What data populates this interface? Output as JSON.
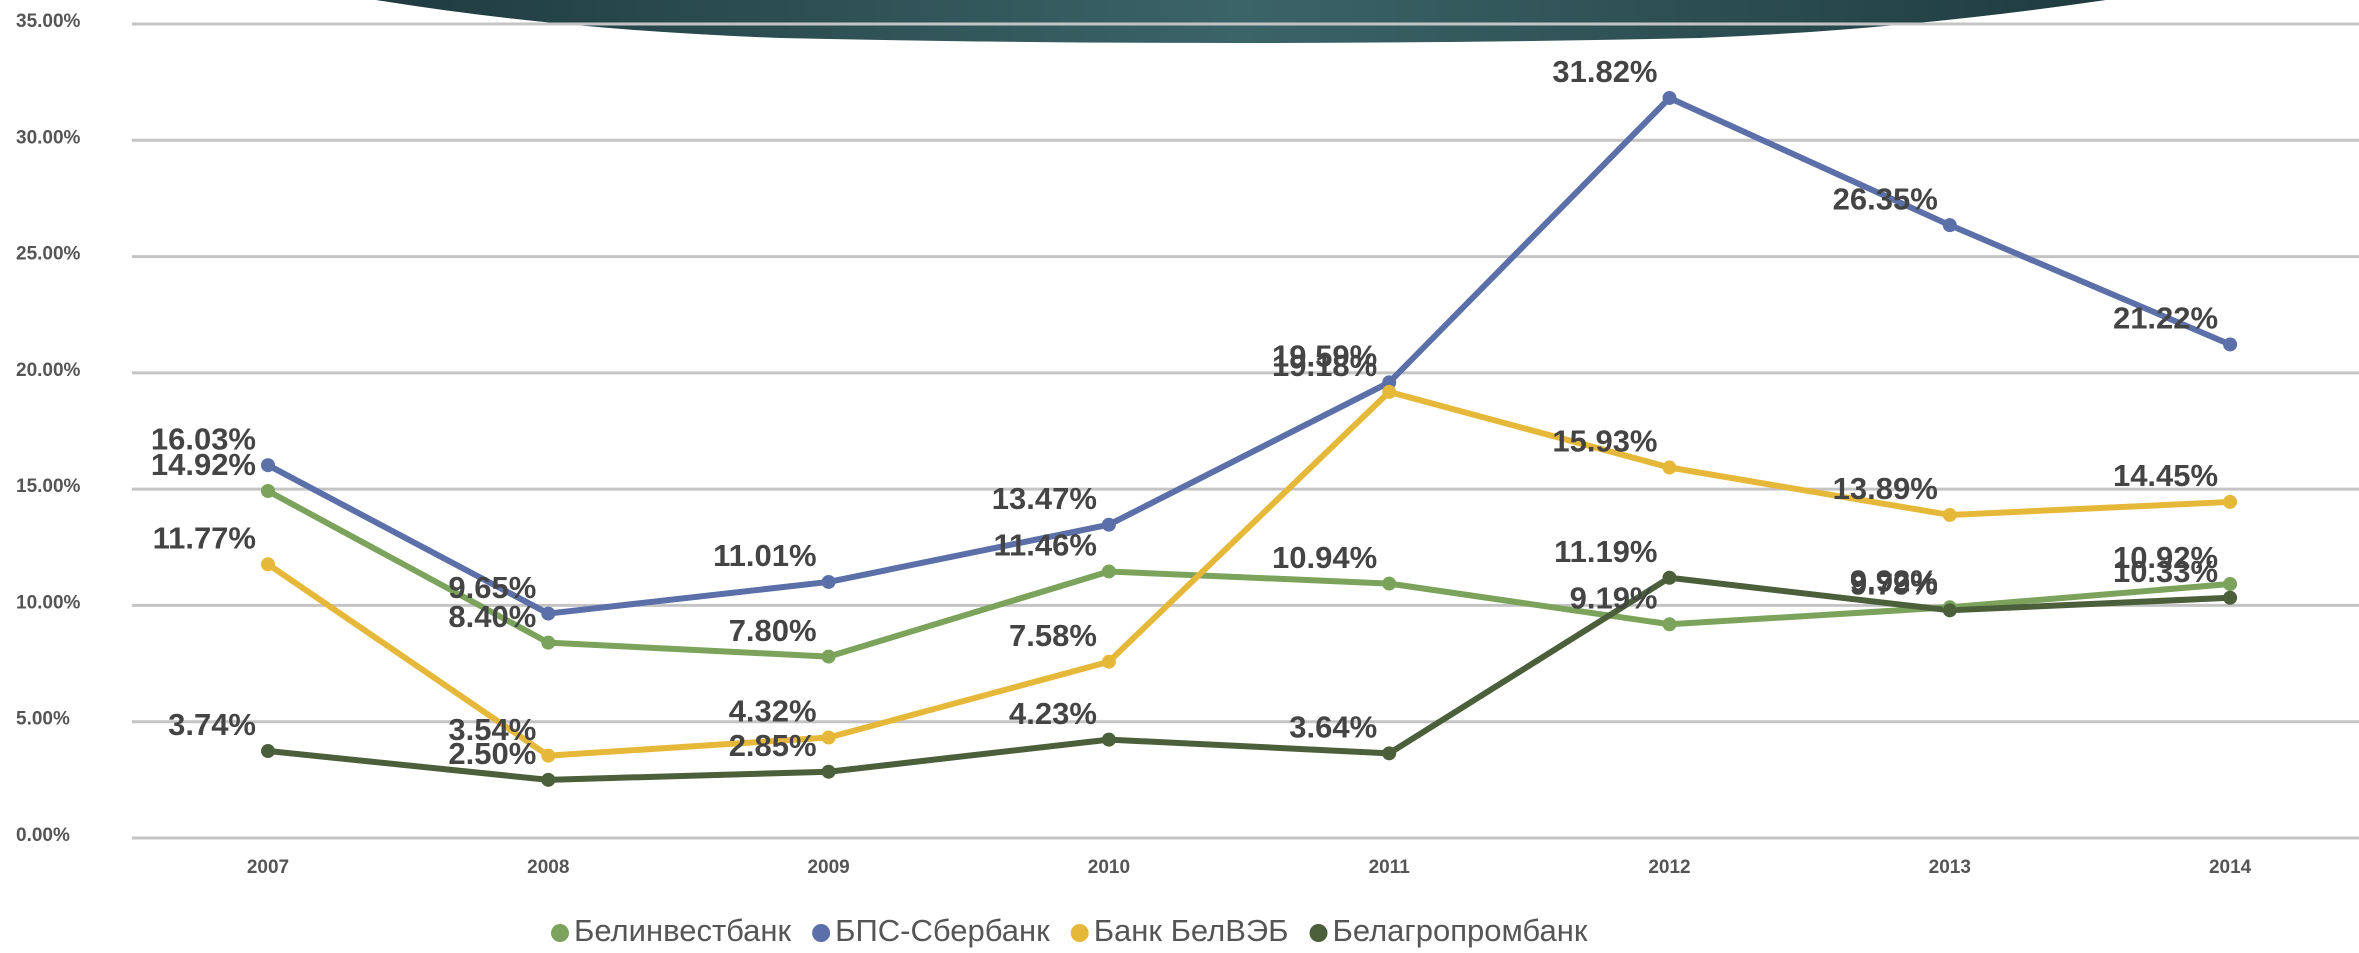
{
  "chart_data": {
    "type": "line",
    "categories": [
      "2007",
      "2008",
      "2009",
      "2010",
      "2011",
      "2012",
      "2013",
      "2014"
    ],
    "series": [
      {
        "name": "Белинвестбанк",
        "color": "#7ba35c",
        "values": [
          14.92,
          8.4,
          7.8,
          11.46,
          10.94,
          9.19,
          9.92,
          10.92
        ],
        "value_labels": [
          "14.92%",
          "8.40%",
          "7.80%",
          "11.46%",
          "10.94%",
          "9.19%",
          "9.92%",
          "10.92%"
        ]
      },
      {
        "name": "БПС-Сбербанк",
        "color": "#5b6fa8",
        "values": [
          16.03,
          9.65,
          11.01,
          13.47,
          19.59,
          31.82,
          26.35,
          21.22
        ],
        "value_labels": [
          "16.03%",
          "9.65%",
          "11.01%",
          "13.47%",
          "19.59%",
          "31.82%",
          "26.35%",
          "21.22%"
        ]
      },
      {
        "name": "Банк БелВЭБ",
        "color": "#e6b83a",
        "values": [
          11.77,
          3.54,
          4.32,
          7.58,
          19.18,
          15.93,
          13.89,
          14.45
        ],
        "value_labels": [
          "11.77%",
          "3.54%",
          "4.32%",
          "7.58%",
          "19.18%",
          "15.93%",
          "13.89%",
          "14.45%"
        ]
      },
      {
        "name": "Белагропромбанк",
        "color": "#4b5f3b",
        "values": [
          3.74,
          2.5,
          2.85,
          4.23,
          3.64,
          11.19,
          9.79,
          10.33
        ],
        "value_labels": [
          "3.74%",
          "2.50%",
          "2.85%",
          "4.23%",
          "3.64%",
          "11.19%",
          "9.79%",
          "10.33%"
        ]
      }
    ],
    "ylim": [
      0,
      35
    ],
    "yticks": [
      {
        "value": 0,
        "label": "0.00%"
      },
      {
        "value": 5,
        "label": "5.00%"
      },
      {
        "value": 10,
        "label": "10.00%"
      },
      {
        "value": 15,
        "label": "15.00%"
      },
      {
        "value": 20,
        "label": "20.00%"
      },
      {
        "value": 25,
        "label": "25.00%"
      },
      {
        "value": 30,
        "label": "30.00%"
      },
      {
        "value": 35,
        "label": "35.00%"
      }
    ],
    "grid": true,
    "legend": "bottom"
  }
}
